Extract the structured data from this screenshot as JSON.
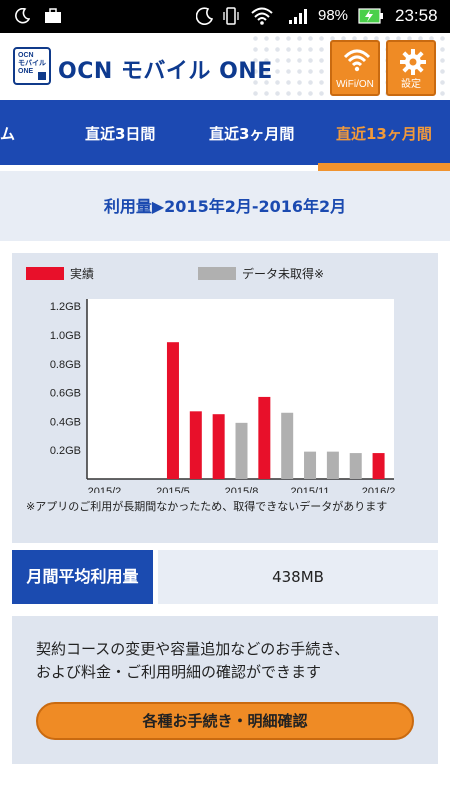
{
  "status_bar": {
    "battery_percent": "98%",
    "time": "23:58",
    "icons": [
      "moon-icon",
      "briefcase-icon",
      "do-not-disturb-icon",
      "vibrate-icon",
      "wifi-icon",
      "signal-icon",
      "battery-charging-icon"
    ]
  },
  "app": {
    "logo_text": "OCN モバイル ONE",
    "title": "OCN モバイル ONE",
    "wifi_button_label": "WiFi/ON",
    "settings_button_label": "設定"
  },
  "tabs": [
    {
      "label": "ム"
    },
    {
      "label": "直近3日間"
    },
    {
      "label": "直近3ヶ月間"
    },
    {
      "label": "直近13ヶ月間",
      "active": true
    }
  ],
  "period_title": "利用量▶2015年2月-2016年2月",
  "legend": {
    "actual_label": "実績",
    "no_data_label": "データ未取得※",
    "actual_color": "#e8102a",
    "no_data_color": "#b0b0b0"
  },
  "chart_data": {
    "type": "bar",
    "y_ticks": [
      "0.2GB",
      "0.4GB",
      "0.6GB",
      "0.8GB",
      "1.0GB",
      "1.2GB"
    ],
    "y_tick_values": [
      0.2,
      0.4,
      0.6,
      0.8,
      1.0,
      1.2
    ],
    "ylim": [
      0,
      1.25
    ],
    "x_tick_labels": [
      "2015/2",
      "2015/5",
      "2015/8",
      "2015/11",
      "2016/2"
    ],
    "x_tick_months": [
      "2015/2",
      "2015/5",
      "2015/8",
      "2015/11",
      "2016/2"
    ],
    "categories": [
      "2015/2",
      "2015/3",
      "2015/4",
      "2015/5",
      "2015/6",
      "2015/7",
      "2015/8",
      "2015/9",
      "2015/10",
      "2015/11",
      "2015/12",
      "2016/1",
      "2016/2"
    ],
    "values": [
      0,
      0,
      0,
      0.95,
      0.47,
      0.45,
      0.39,
      0.57,
      0.46,
      0.19,
      0.19,
      0.18,
      0.18
    ],
    "status": [
      "none",
      "none",
      "none",
      "actual",
      "actual",
      "actual",
      "missing",
      "actual",
      "missing",
      "missing",
      "missing",
      "missing",
      "actual"
    ],
    "grid": false
  },
  "note": "※アプリのご利用が長期間なかったため、取得できないデータがあります",
  "average": {
    "label": "月間平均利用量",
    "value": "438MB"
  },
  "info": {
    "line1": "契約コースの変更や容量追加などのお手続き、",
    "line2": "および料金・ご利用明細の確認ができます",
    "button_label": "各種お手続き・明細確認"
  }
}
